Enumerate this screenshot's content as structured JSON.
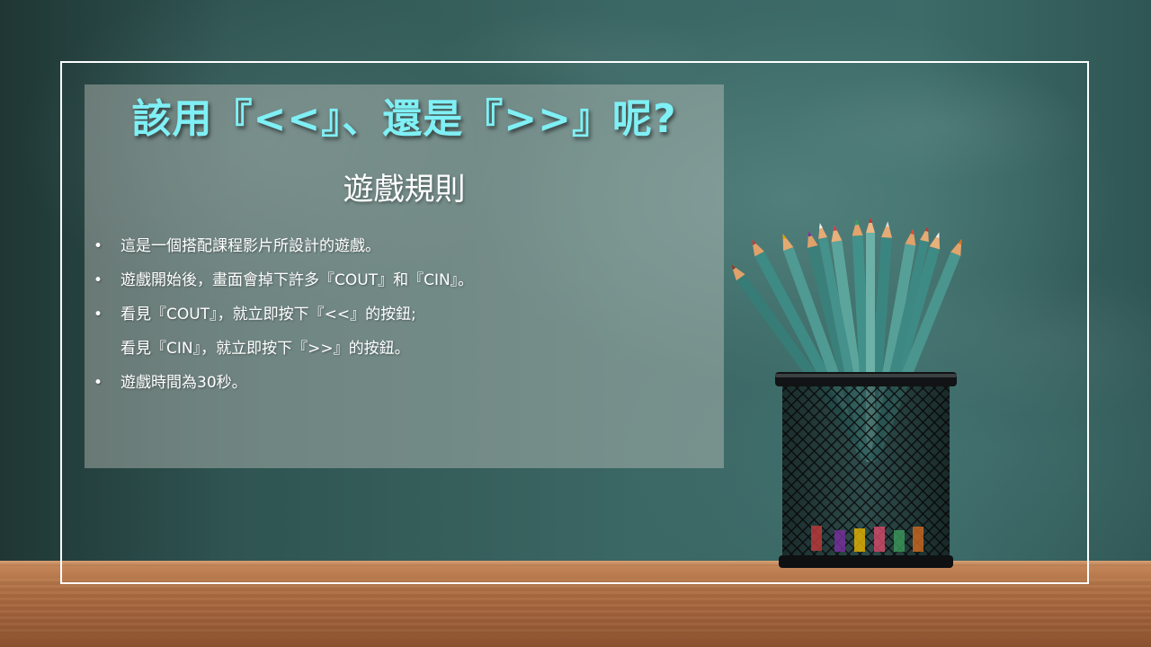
{
  "slide": {
    "title": "該用『<<』、還是『>>』呢?",
    "subtitle": "遊戲規則",
    "rules": [
      {
        "bullet": "•",
        "lines": [
          "這是一個搭配課程影片所設計的遊戲。"
        ]
      },
      {
        "bullet": "•",
        "lines": [
          "遊戲開始後，畫面會掉下許多『COUT』和『CIN』。"
        ]
      },
      {
        "bullet": "•",
        "lines": [
          "看見『COUT』，就立即按下『<<』的按鈕;",
          "看見『CIN』，就立即按下『>>』的按鈕。"
        ]
      },
      {
        "bullet": "•",
        "lines": [
          "遊戲時間為30秒。"
        ]
      }
    ]
  },
  "colors": {
    "title": "#7ff0f5",
    "text": "#ffffff",
    "frame": "#ffffff"
  },
  "icons": {
    "pencil_cup": "pencil-cup-icon"
  }
}
